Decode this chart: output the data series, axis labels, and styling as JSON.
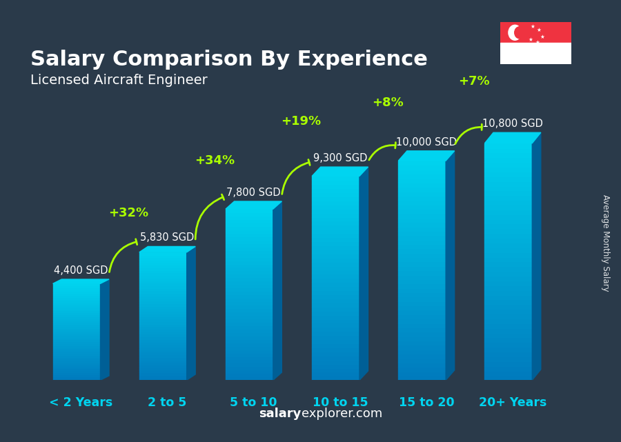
{
  "title": "Salary Comparison By Experience",
  "subtitle": "Licensed Aircraft Engineer",
  "categories": [
    "< 2 Years",
    "2 to 5",
    "5 to 10",
    "10 to 15",
    "15 to 20",
    "20+ Years"
  ],
  "values": [
    4400,
    5830,
    7800,
    9300,
    10000,
    10800
  ],
  "salary_labels": [
    "4,400 SGD",
    "5,830 SGD",
    "7,800 SGD",
    "9,300 SGD",
    "10,000 SGD",
    "10,800 SGD"
  ],
  "pct_labels": [
    "+32%",
    "+34%",
    "+19%",
    "+8%",
    "+7%"
  ],
  "bar_color_top": "#00d4f0",
  "bar_color_bottom": "#007bbd",
  "bar_color_side": "#005f96",
  "bg_color": "#2a3a4a",
  "title_color": "#ffffff",
  "subtitle_color": "#ffffff",
  "salary_label_color": "#ffffff",
  "pct_color": "#aaff00",
  "xlabel_color": "#00d4f0",
  "watermark_bold": "salary",
  "watermark_normal": "explorer.com",
  "ylabel_text": "Average Monthly Salary",
  "bar_width": 0.55,
  "ylim_max": 13500,
  "arrow_color": "#aaff00",
  "flag_red": "#EF3340",
  "flag_white": "#FFFFFF"
}
